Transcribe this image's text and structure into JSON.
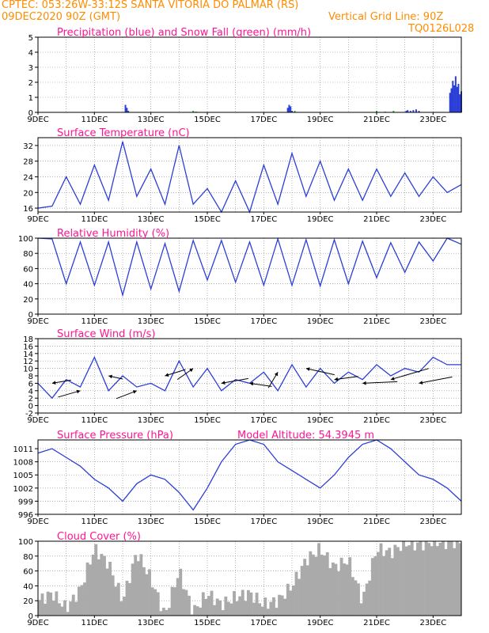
{
  "header": {
    "line1": "CPTEC:   053:26W-33:12S  SANTA VITORIA DO PALMAR (RS)",
    "line2_left": "09DEC2020 90Z (GMT)",
    "line2_right": "Vertical Grid Line: 90Z",
    "code": "TQ0126L028"
  },
  "colors": {
    "header": "#ff8c00",
    "title": "#ff1493",
    "line": "#2b3fd6",
    "snow": "#2fa82f",
    "cloud": "#aaaaaa",
    "arrow": "#000000"
  },
  "x_axis": {
    "ticks": [
      "9DEC",
      "11DEC",
      "13DEC",
      "15DEC",
      "17DEC",
      "19DEC",
      "21DEC",
      "23DEC"
    ],
    "range_days": [
      0,
      15
    ]
  },
  "chart_data": [
    {
      "type": "bar",
      "title": "Precipitation (blue) and Snow Fall (green) (mm/h)",
      "ylim": [
        0,
        5
      ],
      "yticks": [
        "0",
        "1",
        "2",
        "3",
        "4",
        "5"
      ],
      "series": [
        {
          "name": "Precipitation",
          "color": "#2b3fd6",
          "x": [
            3.1,
            3.15,
            3.2,
            8.85,
            8.9,
            8.95,
            9.0,
            13.05,
            13.1,
            13.2,
            13.3,
            13.4,
            13.5,
            14.6,
            14.65,
            14.7,
            14.75,
            14.8,
            14.85,
            14.9,
            14.95,
            15.0
          ],
          "values": [
            0.5,
            0.3,
            0.1,
            0.3,
            0.5,
            0.4,
            0.1,
            0.1,
            0.15,
            0.1,
            0.15,
            0.2,
            0.1,
            1.3,
            1.6,
            2.1,
            1.8,
            2.4,
            1.7,
            1.9,
            1.2,
            1.4
          ]
        },
        {
          "name": "Snow Fall",
          "color": "#2fa82f",
          "x": [
            5.5,
            5.6,
            9.1,
            12.0,
            12.3,
            12.6
          ],
          "values": [
            0.1,
            0.05,
            0.1,
            0.1,
            0.05,
            0.1
          ]
        }
      ]
    },
    {
      "type": "line",
      "title": "Surface Temperature (nC)",
      "ylim": [
        15,
        34
      ],
      "yticks": [
        "16",
        "20",
        "24",
        "28",
        "32"
      ],
      "ytick_values": [
        16,
        20,
        24,
        28,
        32
      ],
      "x": [
        0,
        0.5,
        1,
        1.5,
        2,
        2.5,
        3,
        3.5,
        4,
        4.5,
        5,
        5.5,
        6,
        6.5,
        7,
        7.5,
        8,
        8.5,
        9,
        9.5,
        10,
        10.5,
        11,
        11.5,
        12,
        12.5,
        13,
        13.5,
        14,
        14.5,
        15
      ],
      "values": [
        16,
        16.5,
        24,
        17,
        27,
        18,
        33,
        19,
        26,
        17,
        32,
        17,
        21,
        15,
        23,
        15,
        27,
        17,
        30,
        19,
        28,
        18,
        26,
        18,
        26,
        19,
        25,
        19,
        24,
        20,
        22
      ]
    },
    {
      "type": "line",
      "title": "Relative Humidity (%)",
      "ylim": [
        0,
        100
      ],
      "yticks": [
        "0",
        "20",
        "40",
        "60",
        "80",
        "100"
      ],
      "ytick_values": [
        0,
        20,
        40,
        60,
        80,
        100
      ],
      "x": [
        0,
        0.5,
        1,
        1.5,
        2,
        2.5,
        3,
        3.5,
        4,
        4.5,
        5,
        5.5,
        6,
        6.5,
        7,
        7.5,
        8,
        8.5,
        9,
        9.5,
        10,
        10.5,
        11,
        11.5,
        12,
        12.5,
        13,
        13.5,
        14,
        14.5,
        15
      ],
      "values": [
        100,
        99,
        40,
        95,
        38,
        95,
        25,
        95,
        33,
        93,
        30,
        97,
        45,
        97,
        42,
        95,
        38,
        99,
        38,
        98,
        37,
        98,
        40,
        96,
        48,
        94,
        55,
        95,
        70,
        100,
        92
      ]
    },
    {
      "type": "line",
      "title": "Surface Wind (m/s)",
      "ylim": [
        -2,
        18
      ],
      "yticks": [
        "-2",
        "0",
        "2",
        "4",
        "6",
        "8",
        "10",
        "12",
        "14",
        "16",
        "18"
      ],
      "ytick_values": [
        -2,
        0,
        2,
        4,
        6,
        8,
        10,
        12,
        14,
        16,
        18
      ],
      "x": [
        0,
        0.5,
        1,
        1.5,
        2,
        2.5,
        3,
        3.5,
        4,
        4.5,
        5,
        5.5,
        6,
        6.5,
        7,
        7.5,
        8,
        8.5,
        9,
        9.5,
        10,
        10.5,
        11,
        11.5,
        12,
        12.5,
        13,
        13.5,
        14,
        14.5,
        15
      ],
      "values": [
        6,
        2,
        7,
        5,
        13,
        4,
        8,
        5,
        6,
        4,
        12,
        5,
        10,
        4,
        7,
        6,
        9,
        4,
        11,
        5,
        10,
        6,
        9,
        7,
        11,
        8,
        10,
        9,
        13,
        11,
        11
      ]
    },
    {
      "type": "line",
      "title": "Surface Pressure (hPa)",
      "annotation": "Model Altitude: 54.3945 m",
      "ylim": [
        996,
        1013
      ],
      "yticks": [
        "996",
        "999",
        "1002",
        "1005",
        "1008",
        "1011"
      ],
      "ytick_values": [
        996,
        999,
        1002,
        1005,
        1008,
        1011
      ],
      "x": [
        0,
        0.5,
        1,
        1.5,
        2,
        2.5,
        3,
        3.5,
        4,
        4.5,
        5,
        5.5,
        6,
        6.5,
        7,
        7.5,
        8,
        8.5,
        9,
        9.5,
        10,
        10.5,
        11,
        11.5,
        12,
        12.5,
        13,
        13.5,
        14,
        14.5,
        15
      ],
      "values": [
        1010,
        1011,
        1009,
        1007,
        1004,
        1002,
        999,
        1003,
        1005,
        1004,
        1001,
        997,
        1002,
        1008,
        1012,
        1013,
        1012,
        1008,
        1006,
        1004,
        1002,
        1005,
        1009,
        1012,
        1013,
        1011,
        1008,
        1005,
        1004,
        1002,
        999
      ]
    },
    {
      "type": "area",
      "title": "Cloud Cover (%)",
      "ylim": [
        0,
        100
      ],
      "yticks": [
        "0",
        "20",
        "40",
        "60",
        "80",
        "100"
      ],
      "ytick_values": [
        0,
        20,
        40,
        60,
        80,
        100
      ],
      "x": [
        0,
        0.5,
        1,
        1.5,
        2,
        2.5,
        3,
        3.5,
        4,
        4.5,
        5,
        5.5,
        6,
        6.5,
        7,
        7.5,
        8,
        8.5,
        9,
        9.5,
        10,
        10.5,
        11,
        11.5,
        12,
        12.5,
        13,
        13.5,
        14,
        14.5,
        15
      ],
      "values": [
        20,
        30,
        10,
        35,
        90,
        70,
        20,
        85,
        50,
        0,
        60,
        5,
        30,
        15,
        25,
        30,
        15,
        20,
        40,
        75,
        90,
        65,
        75,
        20,
        90,
        85,
        98,
        95,
        100,
        98,
        100
      ]
    }
  ]
}
